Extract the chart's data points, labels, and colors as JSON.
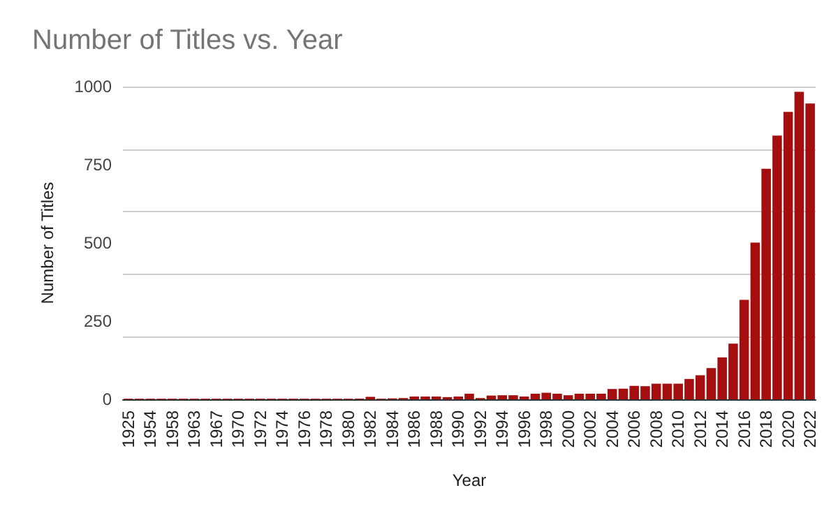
{
  "chart_data": {
    "type": "bar",
    "title": "Number of Titles vs. Year",
    "xlabel": "Year",
    "ylabel": "Number of Titles",
    "categories": [
      "1925",
      null,
      "1954",
      null,
      "1958",
      null,
      "1963",
      null,
      "1967",
      null,
      "1970",
      null,
      "1972",
      null,
      "1974",
      null,
      "1976",
      null,
      "1978",
      null,
      "1980",
      null,
      "1982",
      null,
      "1984",
      null,
      "1986",
      null,
      "1988",
      null,
      "1990",
      null,
      "1992",
      null,
      "1994",
      null,
      "1996",
      null,
      "1998",
      null,
      "2000",
      null,
      "2002",
      null,
      "2004",
      null,
      "2006",
      null,
      "2008",
      null,
      "2010",
      null,
      "2012",
      null,
      "2014",
      null,
      "2016",
      null,
      "2018",
      null,
      "2020",
      null,
      "2022"
    ],
    "values": [
      2,
      2,
      2,
      2,
      2,
      2,
      2,
      2,
      2,
      2,
      2,
      2,
      2,
      2,
      2,
      2,
      2,
      2,
      2,
      2,
      2,
      2,
      8,
      2,
      3,
      4,
      9,
      9,
      9,
      7,
      9,
      18,
      4,
      12,
      13,
      13,
      9,
      18,
      21,
      18,
      13,
      18,
      18,
      18,
      33,
      34,
      43,
      42,
      50,
      50,
      50,
      65,
      77,
      100,
      134,
      178,
      318,
      501,
      737,
      843,
      919,
      983,
      946
    ],
    "color": "#a50e0e",
    "ylim": [
      0,
      1000
    ],
    "yticks": [
      0,
      250,
      500,
      750,
      1000
    ],
    "grid": "y"
  }
}
